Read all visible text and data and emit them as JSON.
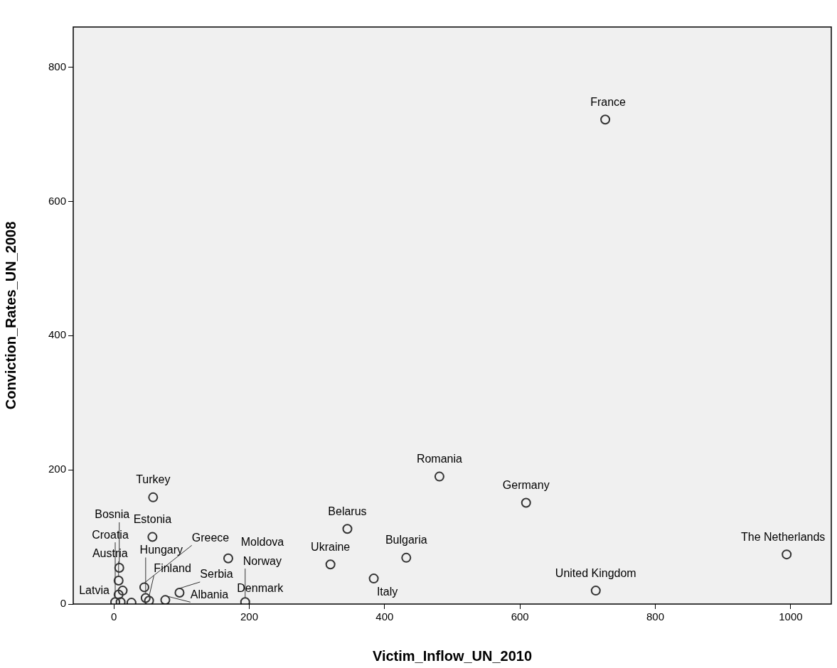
{
  "chart_data": {
    "type": "scatter",
    "xlabel": "Victim_Inflow_UN_2010",
    "ylabel": "Conviction_Rates_UN_2008",
    "x": [
      726,
      609,
      994,
      712,
      481,
      345,
      320,
      384,
      432,
      58,
      57,
      169,
      8,
      7,
      13,
      7,
      2,
      10,
      26,
      45,
      47,
      52,
      76,
      97,
      194
    ],
    "values": [
      722,
      151,
      74,
      20,
      190,
      112,
      59,
      38,
      69,
      159,
      100,
      68,
      54,
      35,
      20,
      14,
      3,
      3,
      2,
      25,
      9,
      5,
      6,
      17,
      3
    ],
    "color": "#333333",
    "marker": "circle",
    "grid": false,
    "legend": false,
    "xlim": [
      -60,
      1060
    ],
    "xticks": [
      0,
      200,
      400,
      600,
      800,
      1000
    ],
    "ylim": [
      0,
      860
    ],
    "yticks": [
      0,
      200,
      400,
      600,
      800
    ],
    "annotations": [
      {
        "text": "France",
        "x": 726,
        "y": 722
      },
      {
        "text": "Germany",
        "x": 609,
        "y": 151
      },
      {
        "text": "The Netherlands",
        "x": 994,
        "y": 74
      },
      {
        "text": "United Kingdom",
        "x": 712,
        "y": 20
      },
      {
        "text": "Romania",
        "x": 481,
        "y": 190
      },
      {
        "text": "Belarus",
        "x": 345,
        "y": 112
      },
      {
        "text": "Ukraine",
        "x": 320,
        "y": 59
      },
      {
        "text": "Italy",
        "x": 384,
        "y": 38
      },
      {
        "text": "Bulgaria",
        "x": 432,
        "y": 69
      },
      {
        "text": "Turkey",
        "x": 58,
        "y": 159
      },
      {
        "text": "Estonia",
        "x": 57,
        "y": 100
      },
      {
        "text": "Moldova",
        "x": 169,
        "y": 68
      },
      {
        "text": "Bosnia",
        "x": 8,
        "y": 54
      },
      {
        "text": "Croatia",
        "x": 2,
        "y": 3
      },
      {
        "text": "Austria",
        "x": 7,
        "y": 35
      },
      {
        "text": "Latvia",
        "x": 13,
        "y": 20
      },
      {
        "text": "Hungary",
        "x": 47,
        "y": 9
      },
      {
        "text": "Greece",
        "x": 45,
        "y": 25
      },
      {
        "text": "Finland",
        "x": 52,
        "y": 5
      },
      {
        "text": "Serbia",
        "x": 97,
        "y": 17
      },
      {
        "text": "Albania",
        "x": 76,
        "y": 6
      },
      {
        "text": "Norway",
        "x": 194,
        "y": 3
      },
      {
        "text": "Denmark",
        "x": 194,
        "y": 3
      }
    ]
  }
}
